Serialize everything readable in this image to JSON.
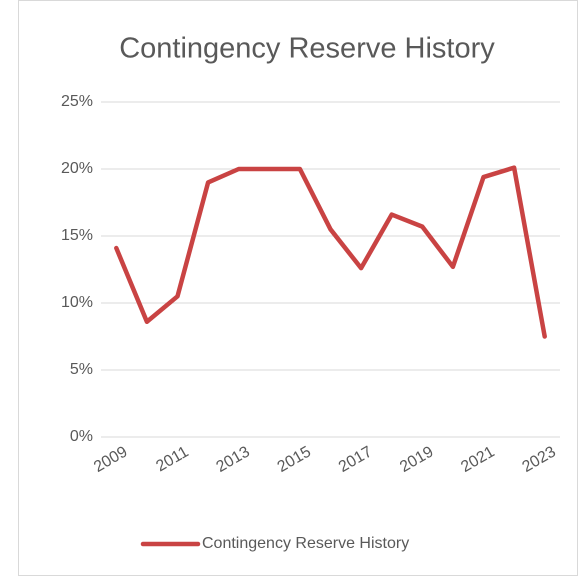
{
  "chart_data": {
    "type": "line",
    "title": "Contingency Reserve History",
    "categories": [
      "2009",
      null,
      "2011",
      null,
      "2013",
      null,
      "2015",
      null,
      "2017",
      null,
      "2019",
      null,
      "2021",
      null,
      "2023"
    ],
    "series": [
      {
        "name": "Contingency Reserve History",
        "color": "#c94343",
        "values": [
          14.1,
          8.6,
          10.5,
          19.0,
          20.0,
          20.0,
          20.0,
          15.5,
          12.6,
          16.6,
          15.7,
          12.7,
          19.4,
          20.1,
          7.5
        ]
      }
    ],
    "ylim": [
      0,
      25
    ],
    "yticks": [
      {
        "value": 0,
        "label": "0%"
      },
      {
        "value": 5,
        "label": "5%"
      },
      {
        "value": 10,
        "label": "10%"
      },
      {
        "value": 15,
        "label": "15%"
      },
      {
        "value": 20,
        "label": "20%"
      },
      {
        "value": 25,
        "label": "25%"
      }
    ],
    "grid": true,
    "legend": "bottom"
  }
}
